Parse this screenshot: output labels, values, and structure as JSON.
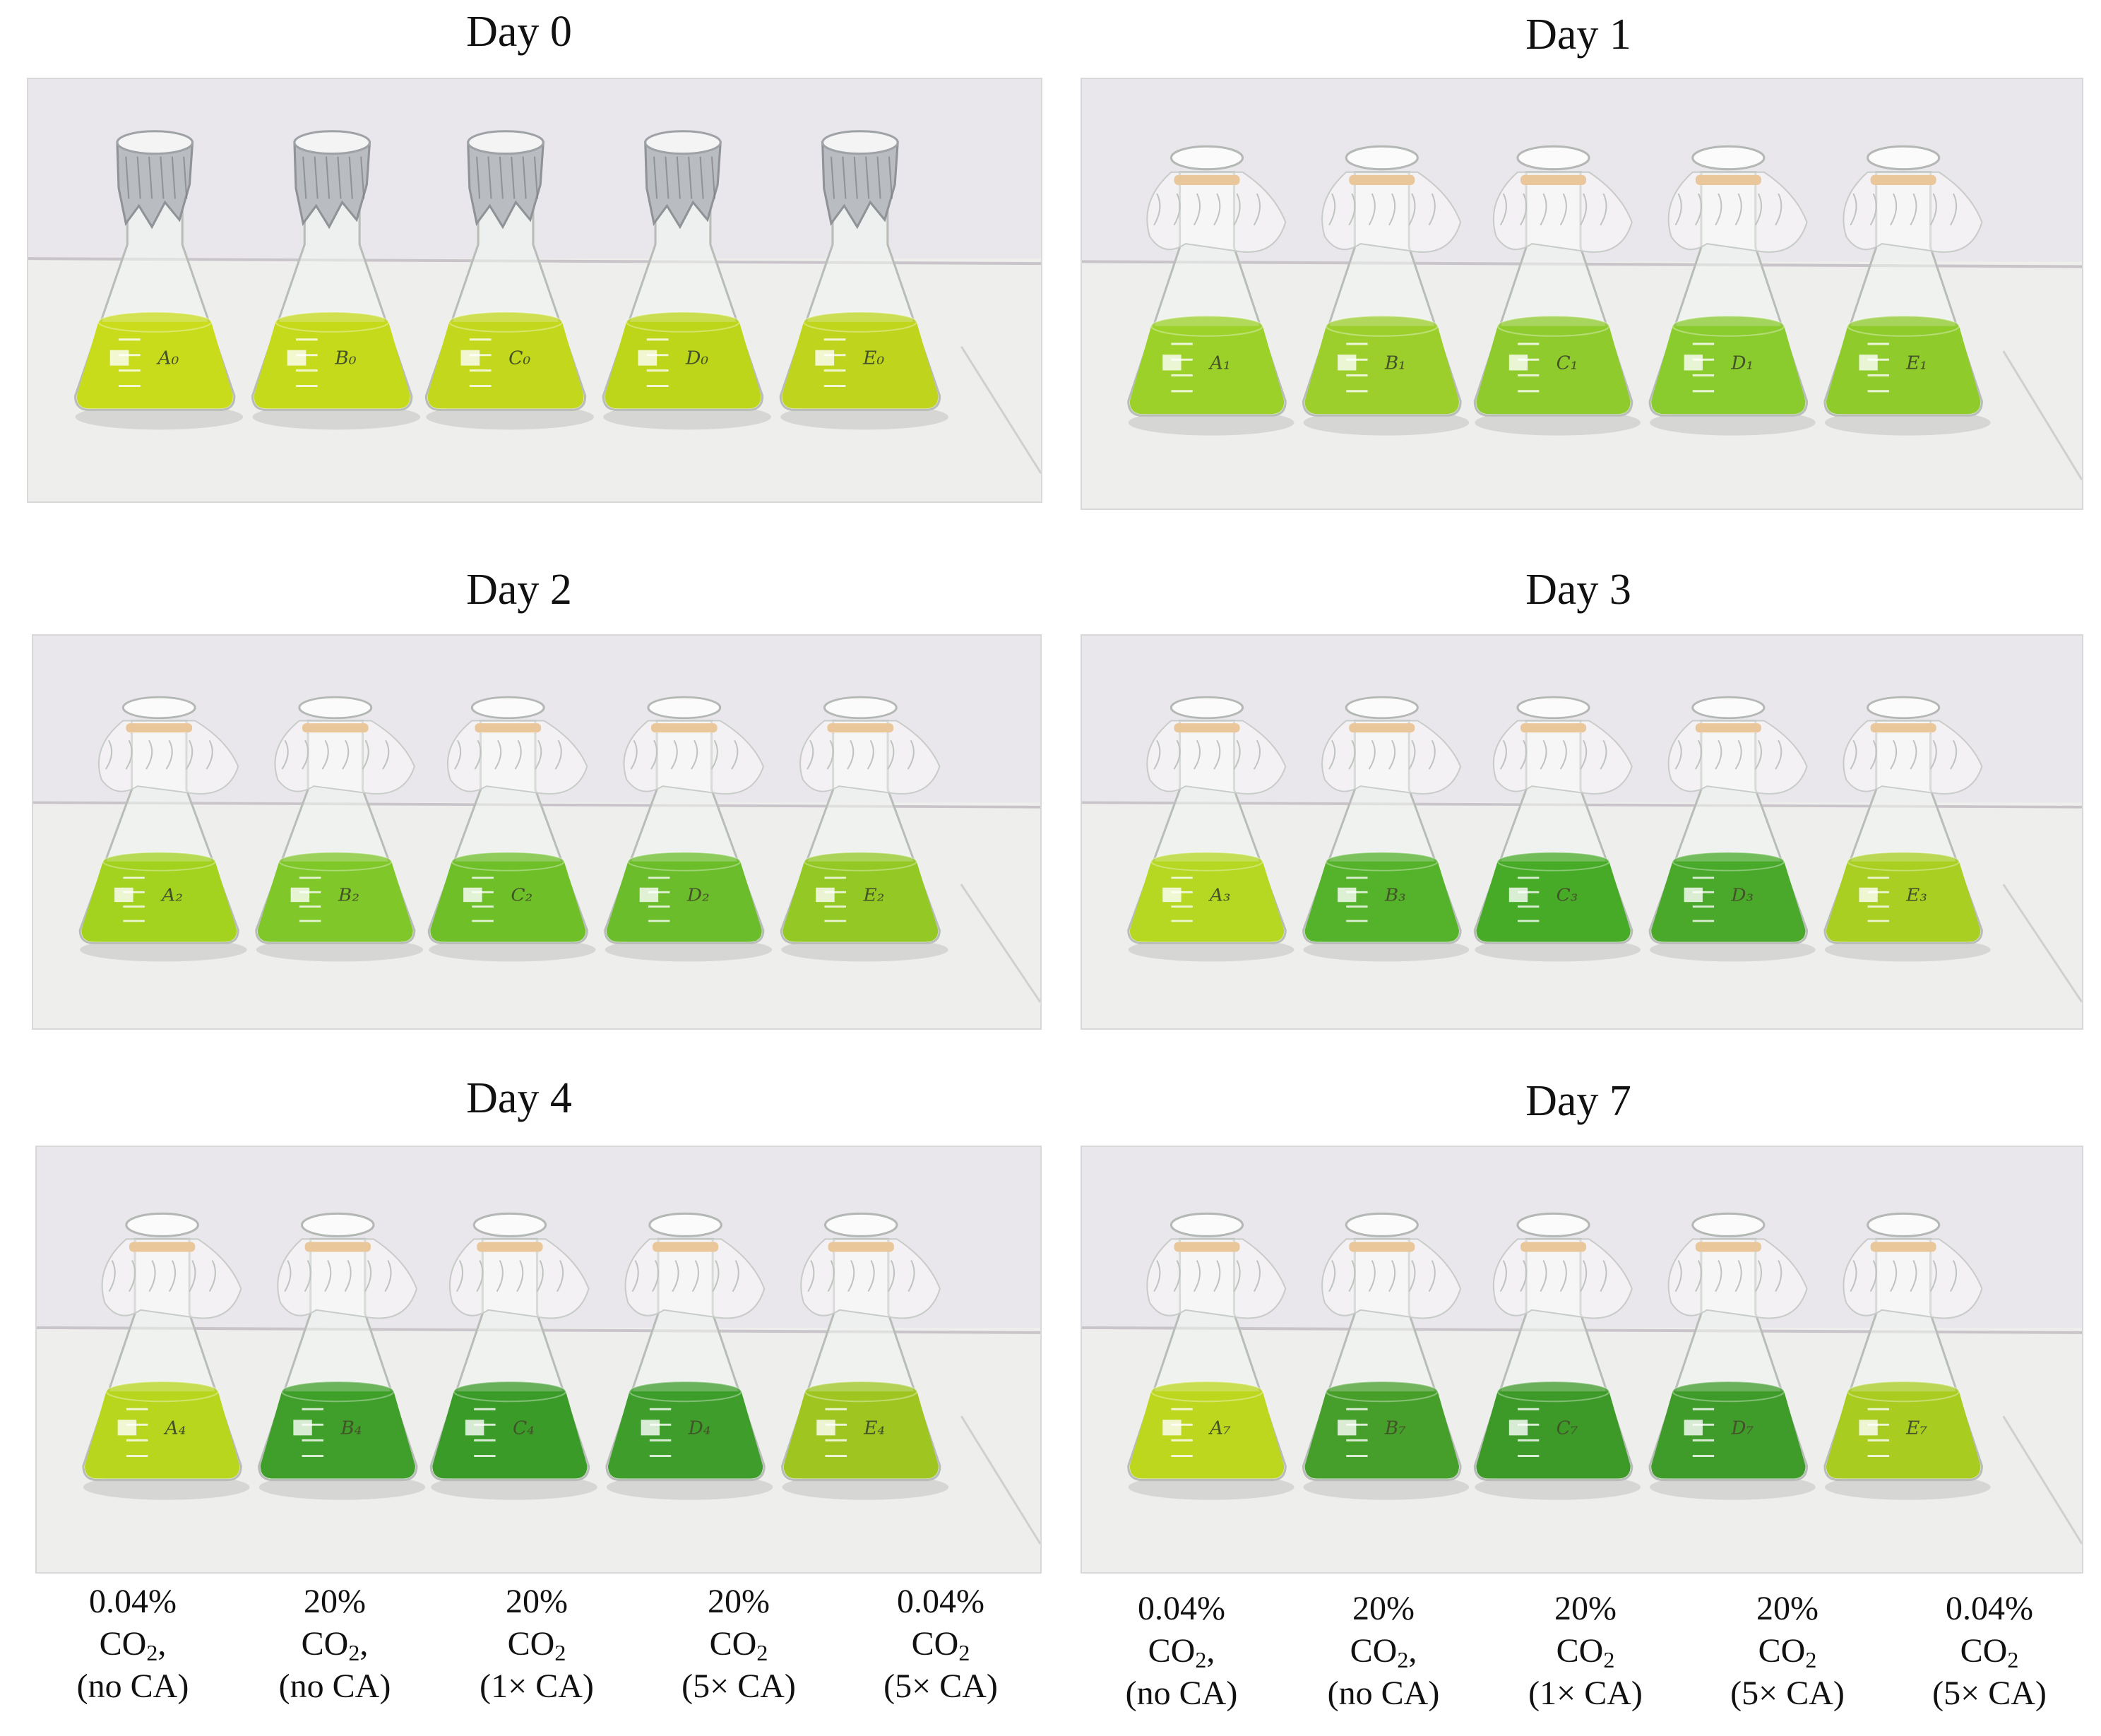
{
  "panels": [
    {
      "title": "Day 0",
      "cover": "foil",
      "flask_labels": [
        "A₀",
        "B₀",
        "C₀",
        "D₀",
        "E₀"
      ],
      "liquid_colors": [
        "#c9dc1c",
        "#c5da1a",
        "#c3d81c",
        "#bed619",
        "#bfd51d"
      ]
    },
    {
      "title": "Day 1",
      "cover": "plastic",
      "flask_labels": [
        "A₁",
        "B₁",
        "C₁",
        "D₁",
        "E₁"
      ],
      "liquid_colors": [
        "#9cd12a",
        "#9ccf2c",
        "#8fcb2c",
        "#8acb2e",
        "#8fcb2b"
      ]
    },
    {
      "title": "Day 2",
      "cover": "plastic",
      "flask_labels": [
        "A₂",
        "B₂",
        "C₂",
        "D₂",
        "E₂"
      ],
      "liquid_colors": [
        "#a3d21f",
        "#80c72a",
        "#6fbf29",
        "#6cbd2b",
        "#94c824"
      ]
    },
    {
      "title": "Day 3",
      "cover": "plastic",
      "flask_labels": [
        "A₃",
        "B₃",
        "C₃",
        "D₃",
        "E₃"
      ],
      "liquid_colors": [
        "#b6d823",
        "#55b22b",
        "#48ab28",
        "#4aa92b",
        "#a9cf22"
      ]
    },
    {
      "title": "Day 4",
      "cover": "plastic",
      "flask_labels": [
        "A₄",
        "B₄",
        "C₄",
        "D₄",
        "E₄"
      ],
      "liquid_colors": [
        "#b8d61e",
        "#3f9f2a",
        "#3b9b28",
        "#3e9d2b",
        "#9fc620"
      ]
    },
    {
      "title": "Day 7",
      "cover": "plastic",
      "flask_labels": [
        "A₇",
        "B₇",
        "C₇",
        "D₇",
        "E₇"
      ],
      "liquid_colors": [
        "#bdd71f",
        "#479f2b",
        "#3d9a28",
        "#3f9b2a",
        "#a9cc20"
      ]
    }
  ],
  "conditions": [
    {
      "line1": "0.04%",
      "co2": "CO",
      "sub": "2",
      "suffix": ",",
      "line3": "(no CA)"
    },
    {
      "line1": "20%",
      "co2": "CO",
      "sub": "2",
      "suffix": ",",
      "line3": "(no CA)"
    },
    {
      "line1": "20%",
      "co2": "CO",
      "sub": "2",
      "suffix": "",
      "line3": "(1× CA)"
    },
    {
      "line1": "20%",
      "co2": "CO",
      "sub": "2",
      "suffix": "",
      "line3": "(5× CA)"
    },
    {
      "line1": "0.04%",
      "co2": "CO",
      "sub": "2",
      "suffix": "",
      "line3": "(5× CA)"
    }
  ],
  "colors": {
    "wall": "#e9e6ec",
    "bench": "#eeeeec",
    "foil": "#b9bcc0",
    "band": "#d99a48"
  }
}
